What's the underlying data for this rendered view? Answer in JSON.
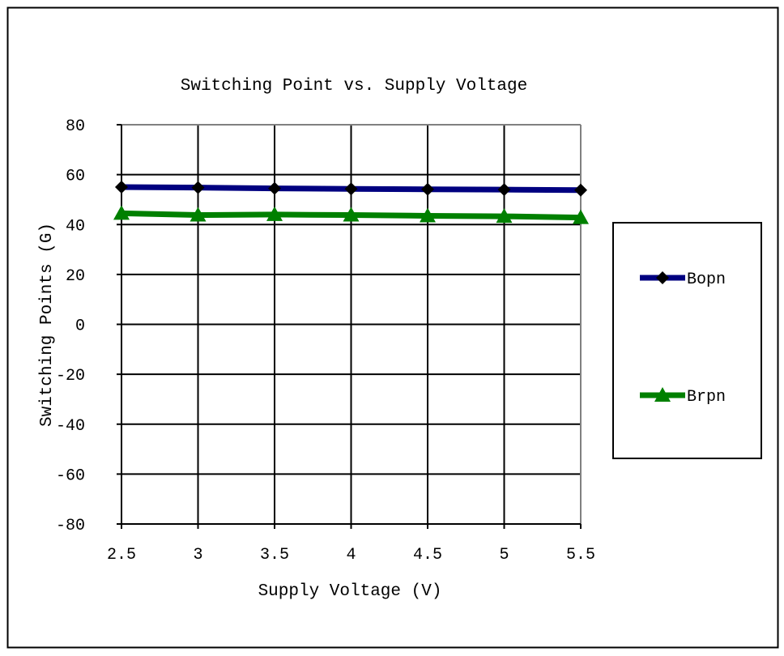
{
  "chart_data": {
    "type": "line",
    "title": "Switching Point vs. Supply Voltage",
    "xlabel": "Supply Voltage (V)",
    "ylabel": "Switching Points (G)",
    "x": [
      2.5,
      3,
      3.5,
      4,
      4.5,
      5,
      5.5
    ],
    "x_tick_labels": [
      "2.5",
      "3",
      "3.5",
      "4",
      "4.5",
      "5",
      "5.5"
    ],
    "y_tick_labels": [
      "80",
      "60",
      "40",
      "20",
      "0",
      "-20",
      "-40",
      "-60",
      "-80"
    ],
    "xlim": [
      2.5,
      5.5
    ],
    "ylim": [
      -80,
      80
    ],
    "grid": true,
    "legend_position": "right",
    "series": [
      {
        "name": "Bopn",
        "values": [
          55,
          54.8,
          54.5,
          54.3,
          54.1,
          54,
          53.8
        ],
        "color": "#000080",
        "marker": "diamond",
        "marker_color": "#000000"
      },
      {
        "name": "Brpn",
        "values": [
          44.5,
          43.8,
          44,
          43.8,
          43.5,
          43.3,
          42.8
        ],
        "color": "#008000",
        "marker": "triangle",
        "marker_color": "#008000"
      }
    ]
  }
}
